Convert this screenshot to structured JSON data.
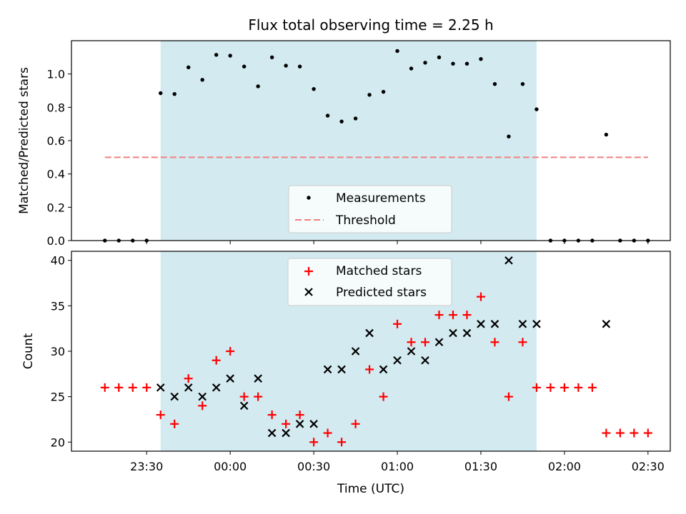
{
  "chart_data": [
    {
      "type": "scatter",
      "title": "Flux total observing time = 2.25 h",
      "xlabel": "",
      "ylabel": "Matched/Predicted stars",
      "ylim": [
        0,
        1.2
      ],
      "yticks": [
        "0.0",
        "0.2",
        "0.4",
        "0.6",
        "0.8",
        "1.0"
      ],
      "shaded_interval": [
        "23:35",
        "01:50"
      ],
      "shaded_color": "#d3eaf0",
      "legend": {
        "placement": "lower-center",
        "entries": [
          "Measurements",
          "Threshold"
        ]
      },
      "threshold": {
        "name": "Threshold",
        "value": 0.5,
        "x": [
          "23:15",
          "02:30"
        ],
        "color": "#f08080",
        "style": "dashed"
      },
      "series": [
        {
          "name": "Measurements",
          "marker": "dot",
          "color": "#000000",
          "x": [
            "23:15",
            "23:20",
            "23:25",
            "23:30",
            "23:35",
            "23:40",
            "23:45",
            "23:50",
            "23:55",
            "00:00",
            "00:05",
            "00:10",
            "00:15",
            "00:20",
            "00:25",
            "00:30",
            "00:35",
            "00:40",
            "00:45",
            "00:50",
            "00:55",
            "01:00",
            "01:05",
            "01:10",
            "01:15",
            "01:20",
            "01:25",
            "01:30",
            "01:35",
            "01:40",
            "01:45",
            "01:50",
            "01:55",
            "02:00",
            "02:05",
            "02:10",
            "02:15",
            "02:20",
            "02:25",
            "02:30"
          ],
          "y": [
            0,
            0,
            0,
            0,
            0.885,
            0.88,
            1.04,
            0.965,
            1.115,
            1.11,
            1.045,
            0.926,
            1.1,
            1.05,
            1.045,
            0.91,
            0.75,
            0.715,
            0.733,
            0.875,
            0.893,
            1.138,
            1.033,
            1.068,
            1.1,
            1.062,
            1.062,
            1.09,
            0.94,
            0.625,
            0.94,
            0.788,
            0,
            0,
            0,
            0,
            0.636,
            0,
            0,
            0
          ]
        }
      ]
    },
    {
      "type": "scatter",
      "title": "",
      "xlabel": "Time (UTC)",
      "ylabel": "Count",
      "ylim": [
        19,
        41
      ],
      "yticks": [
        "20",
        "25",
        "30",
        "35",
        "40"
      ],
      "xticks": [
        "23:30",
        "00:00",
        "00:30",
        "01:00",
        "01:30",
        "02:00",
        "02:30"
      ],
      "shaded_interval": [
        "23:35",
        "01:50"
      ],
      "shaded_color": "#d3eaf0",
      "legend": {
        "placement": "upper-center",
        "entries": [
          "Matched stars",
          "Predicted stars"
        ]
      },
      "series": [
        {
          "name": "Matched stars",
          "marker": "plus",
          "color": "#ff0000",
          "x": [
            "23:15",
            "23:20",
            "23:25",
            "23:30",
            "23:35",
            "23:40",
            "23:45",
            "23:50",
            "23:55",
            "00:00",
            "00:05",
            "00:10",
            "00:15",
            "00:20",
            "00:25",
            "00:30",
            "00:35",
            "00:40",
            "00:45",
            "00:50",
            "00:55",
            "01:00",
            "01:05",
            "01:10",
            "01:15",
            "01:20",
            "01:25",
            "01:30",
            "01:35",
            "01:40",
            "01:45",
            "01:50",
            "01:55",
            "02:00",
            "02:05",
            "02:10",
            "02:15",
            "02:20",
            "02:25",
            "02:30"
          ],
          "y": [
            26,
            26,
            26,
            26,
            23,
            22,
            27,
            24,
            29,
            30,
            25,
            25,
            23,
            22,
            23,
            20,
            21,
            20,
            22,
            28,
            25,
            33,
            31,
            31,
            34,
            34,
            34,
            36,
            31,
            25,
            31,
            26,
            26,
            26,
            26,
            26,
            21,
            21,
            21,
            21
          ]
        },
        {
          "name": "Predicted stars",
          "marker": "x",
          "color": "#000000",
          "x": [
            "23:35",
            "23:40",
            "23:45",
            "23:50",
            "23:55",
            "00:00",
            "00:05",
            "00:10",
            "00:15",
            "00:20",
            "00:25",
            "00:30",
            "00:35",
            "00:40",
            "00:45",
            "00:50",
            "00:55",
            "01:00",
            "01:05",
            "01:10",
            "01:15",
            "01:20",
            "01:25",
            "01:30",
            "01:35",
            "01:40",
            "01:45",
            "01:50",
            "02:15"
          ],
          "y": [
            26,
            25,
            26,
            25,
            26,
            27,
            24,
            27,
            21,
            21,
            22,
            22,
            28,
            28,
            30,
            32,
            28,
            29,
            30,
            29,
            31,
            32,
            32,
            33,
            33,
            40,
            33,
            33,
            33
          ]
        }
      ]
    }
  ]
}
